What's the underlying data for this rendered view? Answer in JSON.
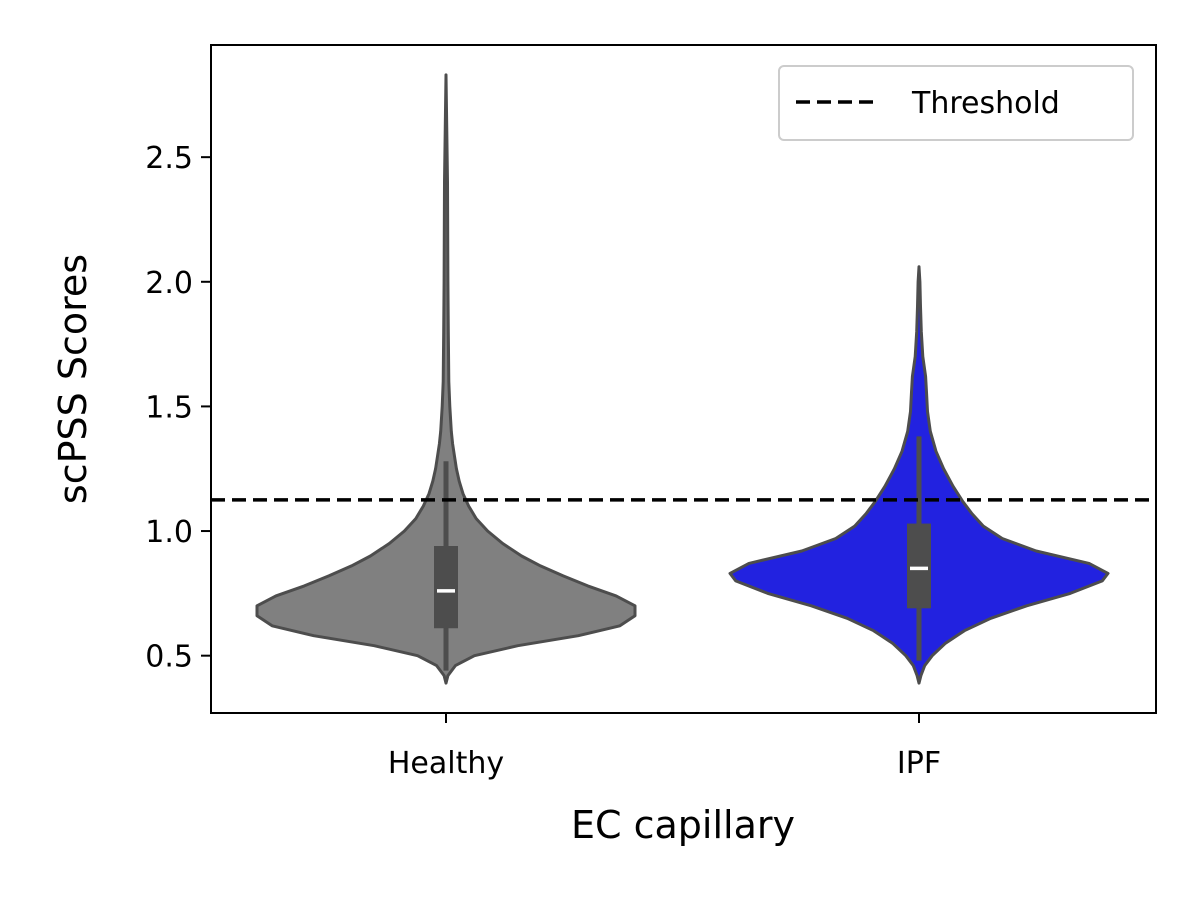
{
  "chart_data": {
    "type": "violin",
    "title": "",
    "xlabel": "EC capillary",
    "ylabel": "scPSS Scores",
    "ylim": [
      0.27,
      2.95
    ],
    "yticks": [
      0.5,
      1.0,
      1.5,
      2.0,
      2.5
    ],
    "ytick_labels": [
      "0.5",
      "1.0",
      "1.5",
      "2.0",
      "2.5"
    ],
    "categories": [
      "Healthy",
      "IPF"
    ],
    "threshold": 1.125,
    "legend": {
      "placement": "top-right",
      "entries": [
        {
          "label": "Threshold",
          "style": "dashed",
          "color": "#000000"
        }
      ]
    },
    "grid": false,
    "violins": [
      {
        "category": "Healthy",
        "color": "#808080",
        "min": 0.39,
        "q1": 0.61,
        "median": 0.76,
        "q3": 0.94,
        "whisker_low": 0.44,
        "whisker_high": 1.28,
        "max": 2.83,
        "density": [
          [
            0.39,
            0.0
          ],
          [
            0.42,
            0.01
          ],
          [
            0.46,
            0.05
          ],
          [
            0.5,
            0.15
          ],
          [
            0.54,
            0.38
          ],
          [
            0.58,
            0.7
          ],
          [
            0.62,
            0.92
          ],
          [
            0.66,
            1.0
          ],
          [
            0.7,
            1.0
          ],
          [
            0.74,
            0.9
          ],
          [
            0.78,
            0.75
          ],
          [
            0.82,
            0.62
          ],
          [
            0.86,
            0.5
          ],
          [
            0.9,
            0.4
          ],
          [
            0.95,
            0.3
          ],
          [
            1.0,
            0.22
          ],
          [
            1.05,
            0.16
          ],
          [
            1.1,
            0.12
          ],
          [
            1.15,
            0.09
          ],
          [
            1.2,
            0.07
          ],
          [
            1.25,
            0.055
          ],
          [
            1.3,
            0.045
          ],
          [
            1.35,
            0.035
          ],
          [
            1.4,
            0.028
          ],
          [
            1.5,
            0.02
          ],
          [
            1.6,
            0.015
          ],
          [
            1.8,
            0.012
          ],
          [
            2.0,
            0.01
          ],
          [
            2.4,
            0.008
          ],
          [
            2.83,
            0.0
          ]
        ]
      },
      {
        "category": "IPF",
        "color": "#2222e0",
        "min": 0.39,
        "q1": 0.69,
        "median": 0.85,
        "q3": 1.03,
        "whisker_low": 0.48,
        "whisker_high": 1.38,
        "max": 2.06,
        "density": [
          [
            0.39,
            0.0
          ],
          [
            0.42,
            0.01
          ],
          [
            0.46,
            0.03
          ],
          [
            0.5,
            0.07
          ],
          [
            0.55,
            0.14
          ],
          [
            0.6,
            0.24
          ],
          [
            0.65,
            0.38
          ],
          [
            0.7,
            0.57
          ],
          [
            0.75,
            0.8
          ],
          [
            0.8,
            0.97
          ],
          [
            0.83,
            1.0
          ],
          [
            0.87,
            0.9
          ],
          [
            0.92,
            0.62
          ],
          [
            0.97,
            0.44
          ],
          [
            1.02,
            0.34
          ],
          [
            1.07,
            0.28
          ],
          [
            1.12,
            0.23
          ],
          [
            1.18,
            0.18
          ],
          [
            1.25,
            0.13
          ],
          [
            1.32,
            0.09
          ],
          [
            1.4,
            0.06
          ],
          [
            1.48,
            0.045
          ],
          [
            1.55,
            0.04
          ],
          [
            1.62,
            0.035
          ],
          [
            1.7,
            0.02
          ],
          [
            1.8,
            0.012
          ],
          [
            1.9,
            0.008
          ],
          [
            2.0,
            0.005
          ],
          [
            2.06,
            0.0
          ]
        ]
      }
    ]
  }
}
